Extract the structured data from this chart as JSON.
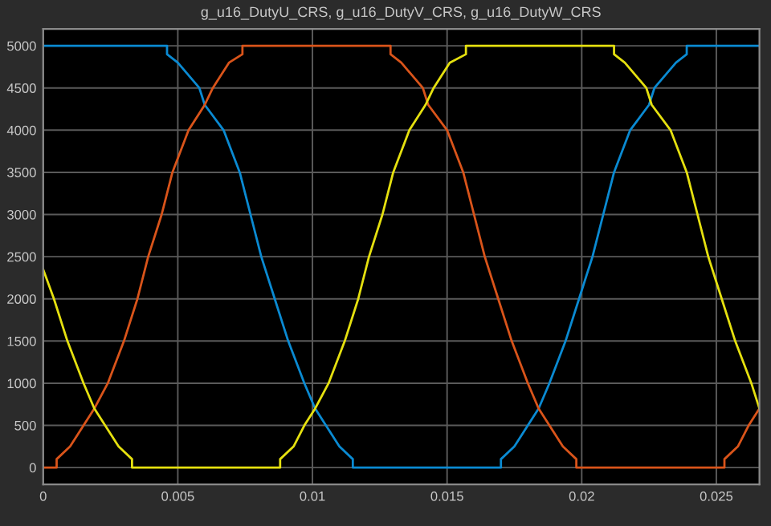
{
  "chart_data": {
    "type": "line",
    "title": "g_u16_DutyU_CRS, g_u16_DutyV_CRS, g_u16_DutyW_CRS",
    "xlim": [
      0,
      0.0266
    ],
    "xticks": [
      0,
      0.005,
      0.01,
      0.015,
      0.02,
      0.025
    ],
    "ylim": [
      -200,
      5200
    ],
    "yticks": [
      0,
      500,
      1000,
      1500,
      2000,
      2500,
      3000,
      3500,
      4000,
      4500,
      5000
    ],
    "grid": true,
    "legend": false,
    "marker": "none",
    "line_style": "solid",
    "series": [
      {
        "color": "#0a8ad2",
        "x": [
          0,
          0.0046,
          0.0046,
          0.005,
          0.0058,
          0.006,
          0.0067,
          0.0073,
          0.0077,
          0.0081,
          0.0086,
          0.0091,
          0.0097,
          0.0101,
          0.0105,
          0.011,
          0.0115,
          0.0115,
          0.017,
          0.017,
          0.0175,
          0.018,
          0.0184,
          0.0188,
          0.0194,
          0.0199,
          0.0204,
          0.0208,
          0.0212,
          0.0218,
          0.0225,
          0.0227,
          0.0235,
          0.0239,
          0.0239,
          0.0266
        ],
        "values": [
          5000,
          5000,
          4900,
          4800,
          4500,
          4300,
          4000,
          3500,
          3000,
          2500,
          2000,
          1500,
          1000,
          700,
          500,
          250,
          100,
          0,
          0,
          100,
          250,
          500,
          700,
          1000,
          1500,
          2000,
          2500,
          3000,
          3500,
          4000,
          4300,
          4500,
          4800,
          4900,
          5000,
          5000
        ]
      },
      {
        "color": "#d9541a",
        "x": [
          0,
          0.0005,
          0.0005,
          0.001,
          0.0015,
          0.0019,
          0.0024,
          0.003,
          0.0035,
          0.0039,
          0.0044,
          0.0048,
          0.0054,
          0.006,
          0.0063,
          0.0069,
          0.0074,
          0.0074,
          0.0129,
          0.0129,
          0.0133,
          0.0141,
          0.0143,
          0.015,
          0.0156,
          0.016,
          0.0164,
          0.0169,
          0.0174,
          0.018,
          0.0184,
          0.0188,
          0.0193,
          0.0198,
          0.0198,
          0.0253,
          0.0253,
          0.0258,
          0.0262,
          0.0266
        ],
        "values": [
          0,
          0,
          100,
          250,
          500,
          700,
          1000,
          1500,
          2000,
          2500,
          3000,
          3500,
          4000,
          4300,
          4500,
          4800,
          4900,
          5000,
          5000,
          4900,
          4800,
          4500,
          4300,
          4000,
          3500,
          3000,
          2500,
          2000,
          1500,
          1000,
          700,
          500,
          250,
          100,
          0,
          0,
          100,
          250,
          500,
          700
        ]
      },
      {
        "color": "#e5e00f",
        "x": [
          0,
          0.0004,
          0.0009,
          0.0015,
          0.0019,
          0.0023,
          0.0028,
          0.0033,
          0.0033,
          0.0088,
          0.0088,
          0.0093,
          0.0097,
          0.0101,
          0.0106,
          0.0112,
          0.0117,
          0.0121,
          0.0126,
          0.013,
          0.0136,
          0.0142,
          0.0145,
          0.0151,
          0.0157,
          0.0157,
          0.0212,
          0.0212,
          0.0216,
          0.0224,
          0.0226,
          0.0233,
          0.0239,
          0.0243,
          0.0247,
          0.0252,
          0.0257,
          0.0263,
          0.0266
        ],
        "values": [
          2350,
          2000,
          1500,
          1000,
          700,
          500,
          250,
          100,
          0,
          0,
          100,
          250,
          500,
          700,
          1000,
          1500,
          2000,
          2500,
          3000,
          3500,
          4000,
          4300,
          4500,
          4800,
          4900,
          5000,
          5000,
          4900,
          4800,
          4500,
          4300,
          4000,
          3500,
          3000,
          2500,
          2000,
          1500,
          1000,
          700
        ]
      }
    ]
  }
}
